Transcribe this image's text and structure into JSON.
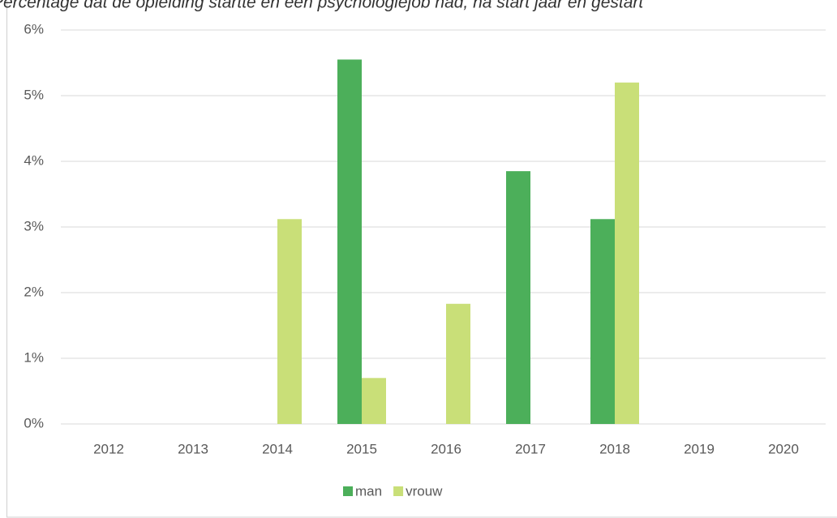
{
  "chart_data": {
    "type": "bar",
    "title": "Percentage dat de opleiding startte en een psychologiejob had, na start jaar en gestart",
    "categories": [
      "2012",
      "2013",
      "2014",
      "2015",
      "2016",
      "2017",
      "2018",
      "2019",
      "2020"
    ],
    "series": [
      {
        "name": "man",
        "color": "#4caf5a",
        "values": [
          0,
          0,
          0,
          5.55,
          0,
          3.85,
          3.12,
          0,
          0
        ]
      },
      {
        "name": "vrouw",
        "color": "#c9df78",
        "values": [
          0,
          0,
          3.12,
          0.7,
          1.83,
          0,
          5.2,
          0,
          0
        ]
      }
    ],
    "ylim": [
      0,
      6
    ],
    "yticks": [
      {
        "value": 0,
        "label": "0%"
      },
      {
        "value": 1,
        "label": "1%"
      },
      {
        "value": 2,
        "label": "2%"
      },
      {
        "value": 3,
        "label": "3%"
      },
      {
        "value": 4,
        "label": "4%"
      },
      {
        "value": 5,
        "label": "5%"
      },
      {
        "value": 6,
        "label": "6%"
      }
    ],
    "grid": true,
    "legend": "bottom"
  }
}
